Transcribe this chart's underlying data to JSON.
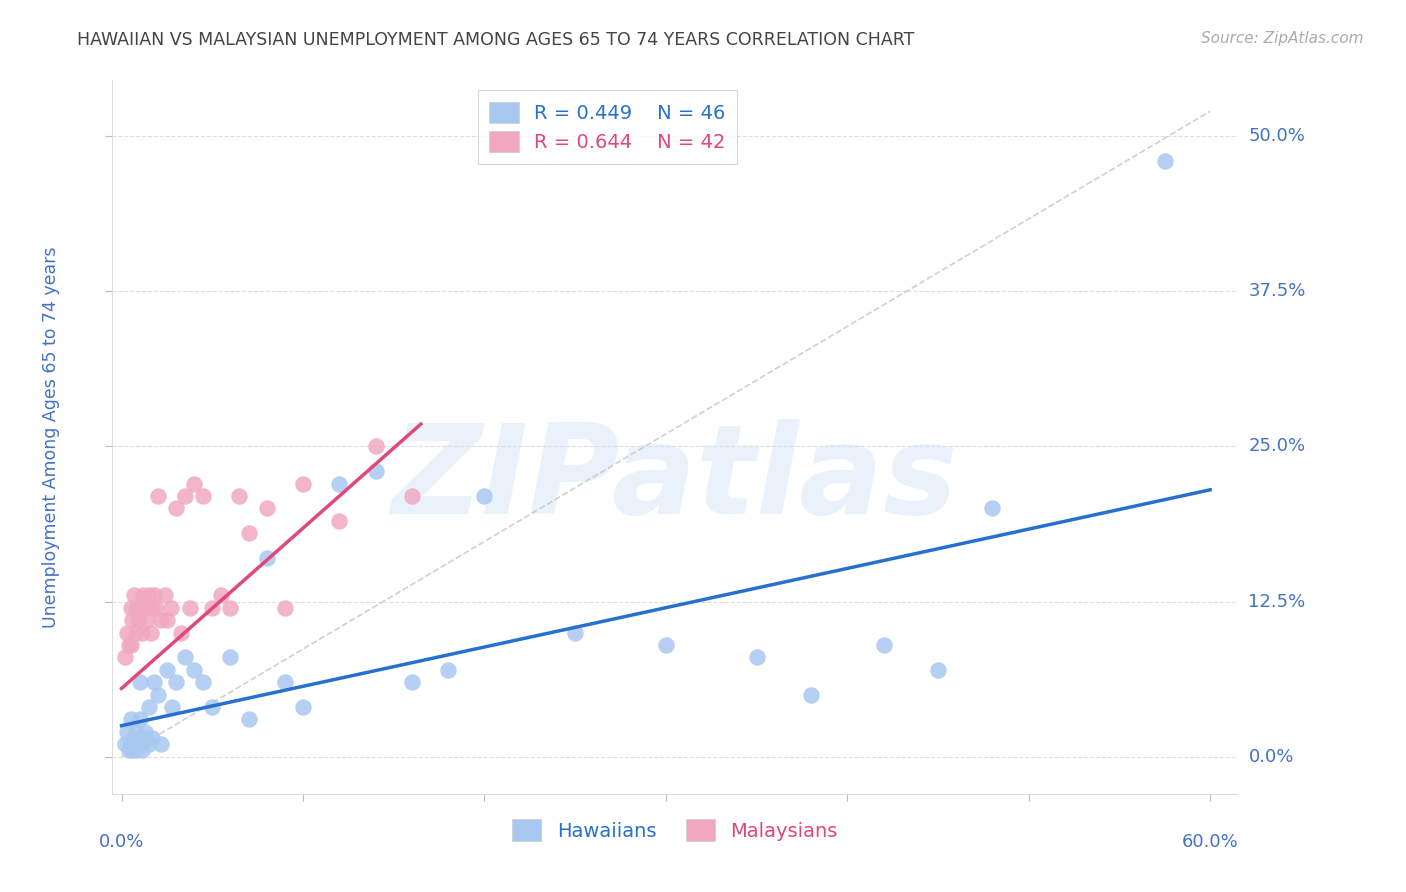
{
  "title": "HAWAIIAN VS MALAYSIAN UNEMPLOYMENT AMONG AGES 65 TO 74 YEARS CORRELATION CHART",
  "source": "Source: ZipAtlas.com",
  "ylabel": "Unemployment Among Ages 65 to 74 years",
  "ytick_labels": [
    "0.0%",
    "12.5%",
    "25.0%",
    "37.5%",
    "50.0%"
  ],
  "ytick_values": [
    0.0,
    0.125,
    0.25,
    0.375,
    0.5
  ],
  "xmin": -0.005,
  "xmax": 0.615,
  "ymin": -0.03,
  "ymax": 0.545,
  "hawaiian_color": "#a8c8f0",
  "malaysian_color": "#f0a8c0",
  "hawaiian_line_color": "#2870d0",
  "malaysian_line_color": "#e04878",
  "dashed_line_color": "#c8c8c8",
  "background_color": "#ffffff",
  "grid_color": "#d0d0d0",
  "title_color": "#444444",
  "axis_label_color": "#4472c4",
  "watermark": "ZIPatlas",
  "hawaiians_x": [
    0.002,
    0.003,
    0.004,
    0.005,
    0.005,
    0.006,
    0.007,
    0.008,
    0.008,
    0.009,
    0.01,
    0.01,
    0.011,
    0.012,
    0.013,
    0.015,
    0.015,
    0.017,
    0.018,
    0.02,
    0.022,
    0.025,
    0.028,
    0.03,
    0.035,
    0.04,
    0.045,
    0.05,
    0.06,
    0.07,
    0.08,
    0.09,
    0.1,
    0.12,
    0.14,
    0.16,
    0.18,
    0.2,
    0.25,
    0.3,
    0.35,
    0.38,
    0.42,
    0.45,
    0.48,
    0.575
  ],
  "hawaiians_y": [
    0.01,
    0.02,
    0.005,
    0.03,
    0.01,
    0.005,
    0.015,
    0.02,
    0.005,
    0.01,
    0.06,
    0.03,
    0.005,
    0.015,
    0.02,
    0.04,
    0.01,
    0.015,
    0.06,
    0.05,
    0.01,
    0.07,
    0.04,
    0.06,
    0.08,
    0.07,
    0.06,
    0.04,
    0.08,
    0.03,
    0.16,
    0.06,
    0.04,
    0.22,
    0.23,
    0.06,
    0.07,
    0.21,
    0.1,
    0.09,
    0.08,
    0.05,
    0.09,
    0.07,
    0.2,
    0.48
  ],
  "malaysians_x": [
    0.002,
    0.003,
    0.004,
    0.005,
    0.005,
    0.006,
    0.007,
    0.008,
    0.008,
    0.009,
    0.01,
    0.011,
    0.012,
    0.013,
    0.014,
    0.015,
    0.016,
    0.017,
    0.018,
    0.019,
    0.02,
    0.022,
    0.024,
    0.025,
    0.027,
    0.03,
    0.033,
    0.035,
    0.038,
    0.04,
    0.045,
    0.05,
    0.055,
    0.06,
    0.065,
    0.07,
    0.08,
    0.09,
    0.1,
    0.12,
    0.14,
    0.16
  ],
  "malaysians_y": [
    0.08,
    0.1,
    0.09,
    0.12,
    0.09,
    0.11,
    0.13,
    0.1,
    0.12,
    0.11,
    0.12,
    0.1,
    0.13,
    0.12,
    0.11,
    0.13,
    0.1,
    0.12,
    0.13,
    0.12,
    0.21,
    0.11,
    0.13,
    0.11,
    0.12,
    0.2,
    0.1,
    0.21,
    0.12,
    0.22,
    0.21,
    0.12,
    0.13,
    0.12,
    0.21,
    0.18,
    0.2,
    0.12,
    0.22,
    0.19,
    0.25,
    0.21
  ],
  "h_line_x0": 0.0,
  "h_line_x1": 0.6,
  "h_line_y0": 0.025,
  "h_line_y1": 0.215,
  "m_line_x0": 0.0,
  "m_line_x1": 0.165,
  "m_line_y0": 0.055,
  "m_line_y1": 0.268,
  "dash_line_x0": 0.0,
  "dash_line_x1": 0.6,
  "dash_line_y0": 0.0,
  "dash_line_y1": 0.52
}
